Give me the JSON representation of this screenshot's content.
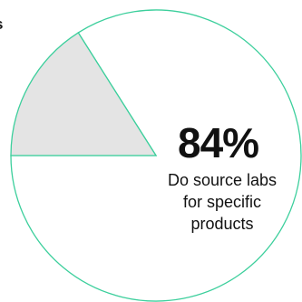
{
  "chart_data": {
    "type": "pie",
    "slices": [
      {
        "value": 84,
        "color": "#ffffff",
        "stroke": "#3ccf9c"
      },
      {
        "value": 16,
        "color": "#e4e4e4",
        "stroke": "#3ccf9c"
      }
    ],
    "stat": {
      "value": "84%",
      "caption_lines": [
        "Do source labs",
        "for specific",
        "products"
      ]
    },
    "cut_off_label": "s"
  },
  "colors": {
    "outline": "#3ccf9c",
    "minority_fill": "#e4e4e4",
    "text": "#111111"
  }
}
